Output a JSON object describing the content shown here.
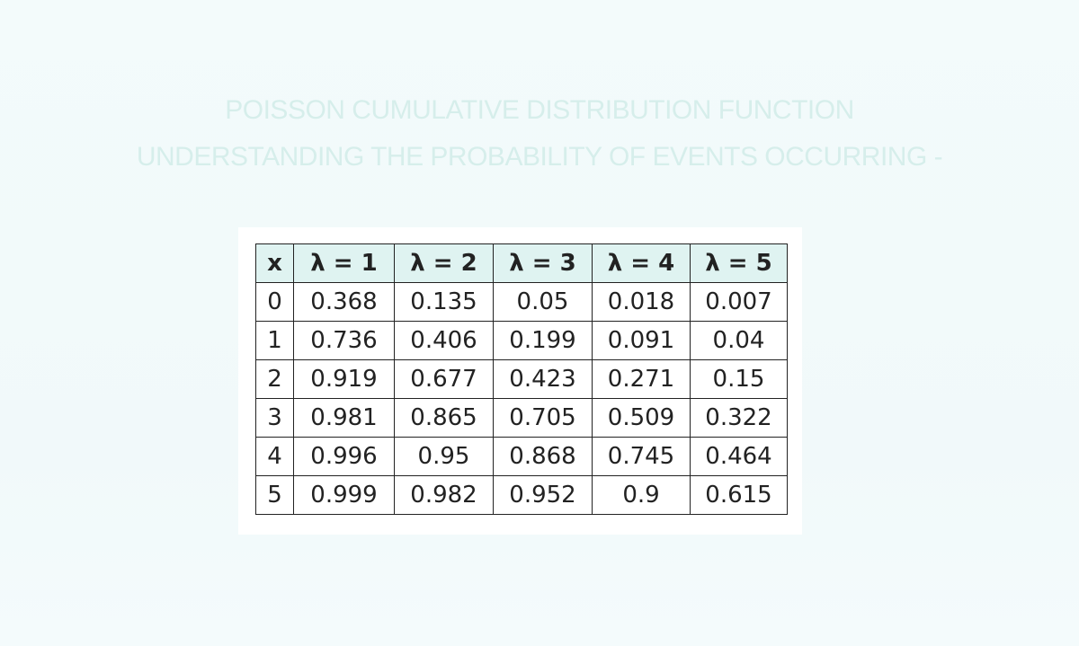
{
  "header": {
    "title": [
      "POISSON CUMULATIVE DISTRIBUTION FUNCTION",
      "UNDERSTANDING THE PROBABILITY OF EVENTS OCCURRING -"
    ]
  },
  "table": {
    "header": [
      "x",
      "λ = 1",
      "λ = 2",
      "λ = 3",
      "λ = 4",
      "λ = 5"
    ],
    "rows": [
      [
        "0",
        "0.368",
        "0.135",
        "0.05",
        "0.018",
        "0.007"
      ],
      [
        "1",
        "0.736",
        "0.406",
        "0.199",
        "0.091",
        "0.04"
      ],
      [
        "2",
        "0.919",
        "0.677",
        "0.423",
        "0.271",
        "0.15"
      ],
      [
        "3",
        "0.981",
        "0.865",
        "0.705",
        "0.509",
        "0.322"
      ],
      [
        "4",
        "0.996",
        "0.95",
        "0.868",
        "0.745",
        "0.464"
      ],
      [
        "5",
        "0.999",
        "0.982",
        "0.952",
        "0.9",
        "0.615"
      ]
    ]
  }
}
